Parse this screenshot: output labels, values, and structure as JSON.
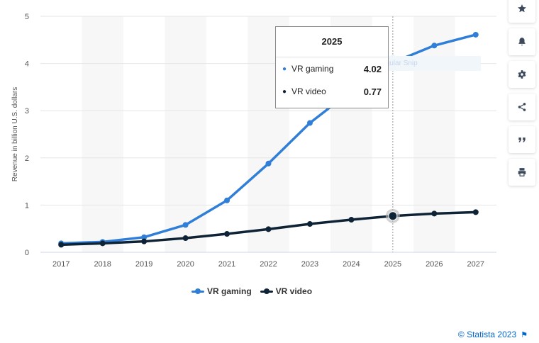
{
  "chart_data": {
    "type": "line",
    "title": "",
    "xlabel": "",
    "ylabel": "Revenue in billion U.S. dollars",
    "categories": [
      "2017",
      "2018",
      "2019",
      "2020",
      "2021",
      "2022",
      "2023",
      "2024",
      "2025",
      "2026",
      "2027"
    ],
    "ylim": [
      0,
      5
    ],
    "yticks": [
      "0",
      "1",
      "2",
      "3",
      "4",
      "5"
    ],
    "grid": true,
    "legend_position": "bottom-center",
    "series": [
      {
        "name": "VR gaming",
        "color": "#2f7ed8",
        "values": [
          0.19,
          0.22,
          0.32,
          0.58,
          1.1,
          1.88,
          2.74,
          3.42,
          4.02,
          4.38,
          4.61
        ]
      },
      {
        "name": "VR video",
        "color": "#0f2336",
        "values": [
          0.16,
          0.19,
          0.23,
          0.3,
          0.39,
          0.49,
          0.6,
          0.69,
          0.77,
          0.82,
          0.85
        ]
      }
    ]
  },
  "tooltip": {
    "title": "2025",
    "rows": [
      {
        "name": "VR gaming",
        "value": "4.02"
      },
      {
        "name": "VR video",
        "value": "0.77"
      }
    ]
  },
  "ghost_label": "Rectangular Snip",
  "credit": "© Statista 2023",
  "toolbar": {
    "icons": [
      "star-icon",
      "bell-icon",
      "gear-icon",
      "share-icon",
      "quote-icon",
      "print-icon"
    ]
  }
}
